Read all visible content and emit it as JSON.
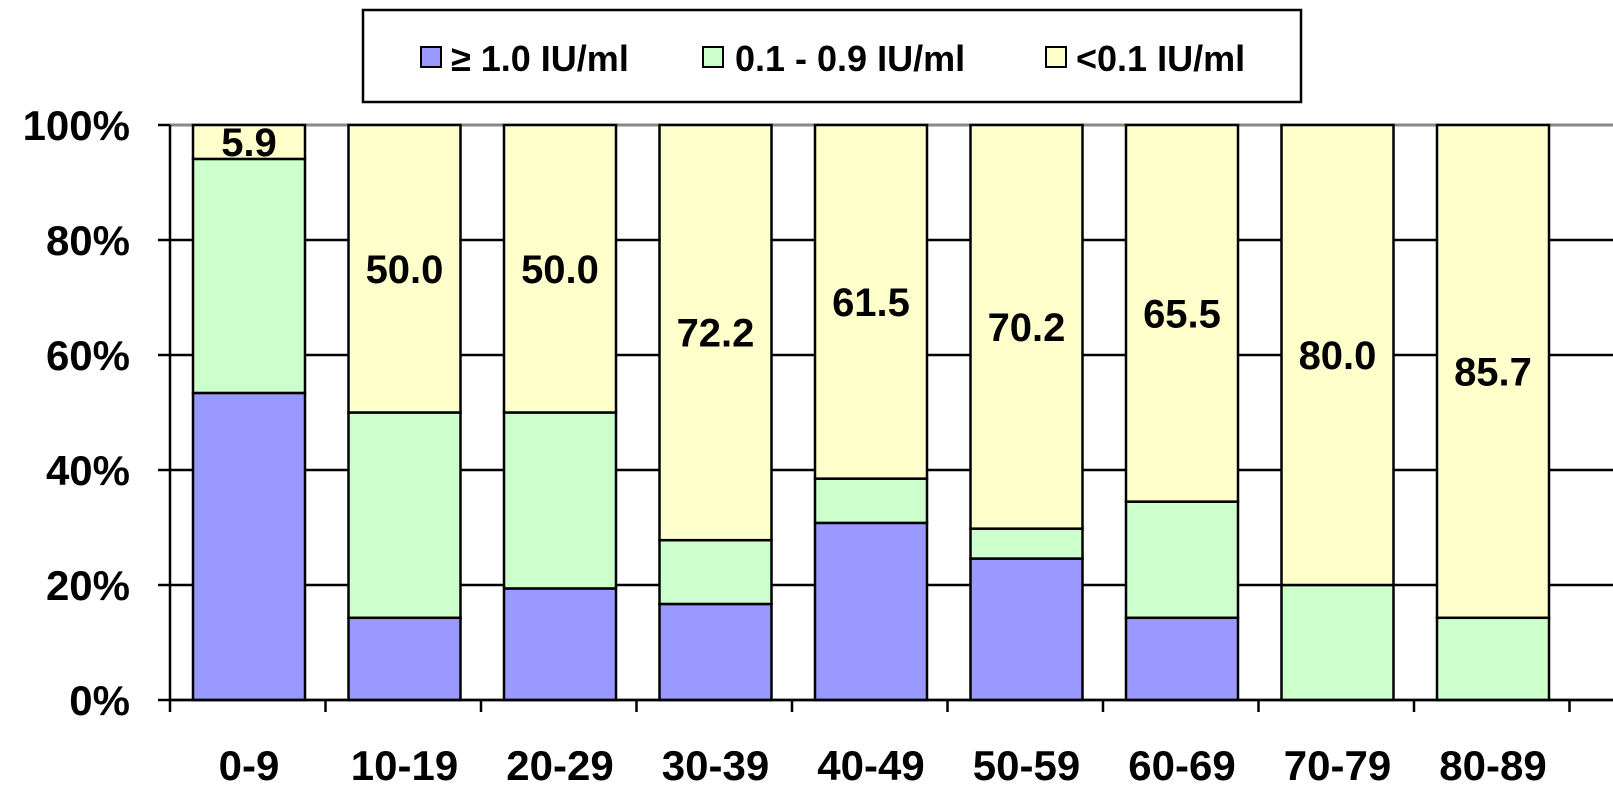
{
  "chart_data": {
    "type": "bar",
    "stacked": true,
    "percent_stacked": true,
    "categories": [
      "0-9",
      "10-19",
      "20-29",
      "30-39",
      "40-49",
      "50-59",
      "60-69",
      "70-79",
      "80-89"
    ],
    "series": [
      {
        "name": "≥ 1.0 IU/ml",
        "color": "#9999ff",
        "values": [
          53.4,
          14.3,
          19.4,
          16.7,
          30.8,
          24.6,
          14.3,
          0.0,
          0.0
        ]
      },
      {
        "name": "0.1 - 0.9 IU/ml",
        "color": "#ccffcc",
        "values": [
          40.7,
          35.7,
          30.6,
          11.1,
          7.7,
          5.2,
          20.2,
          20.0,
          14.3
        ]
      },
      {
        "name": "<0.1 IU/ml",
        "color": "#ffffcc",
        "values": [
          5.9,
          50.0,
          50.0,
          72.2,
          61.5,
          70.2,
          65.5,
          80.0,
          85.7
        ],
        "labels": [
          "5.9",
          "50.0",
          "50.0",
          "72.2",
          "61.5",
          "70.2",
          "65.5",
          "80.0",
          "85.7"
        ]
      }
    ],
    "ylim": [
      0,
      100
    ],
    "y_ticks": [
      "0%",
      "20%",
      "40%",
      "60%",
      "80%",
      "100%"
    ],
    "grid": true,
    "legend_position": "top"
  }
}
